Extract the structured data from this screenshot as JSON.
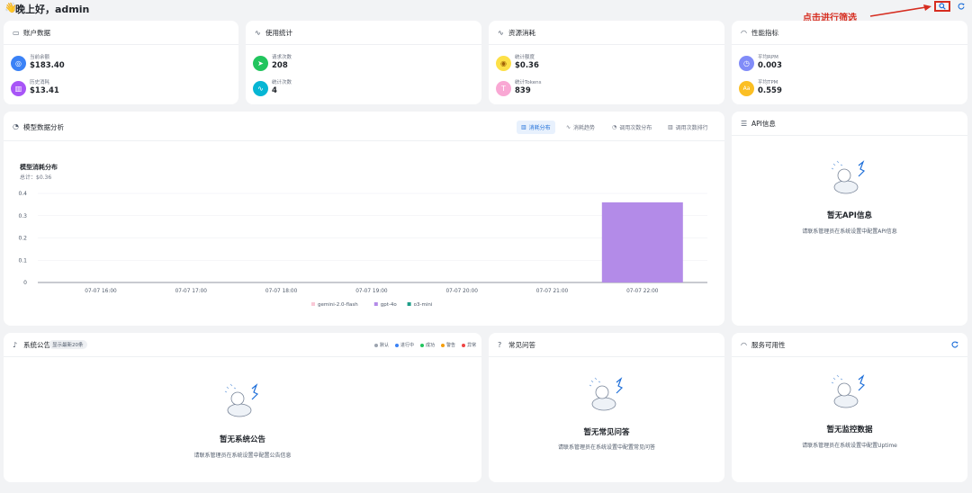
{
  "header": {
    "greeting": "晚上好，admin",
    "annotation": "点击进行筛选"
  },
  "cards": {
    "account": {
      "title": "账户数据",
      "items": [
        {
          "label": "当前余额",
          "value": "$183.40",
          "color": "#3b82f6",
          "icon": "wallet-icon"
        },
        {
          "label": "历史消耗",
          "value": "$13.41",
          "color": "#a855f7",
          "icon": "bar-chart-icon"
        }
      ]
    },
    "usage": {
      "title": "使用统计",
      "items": [
        {
          "label": "请求次数",
          "value": "208",
          "color": "#22c55e",
          "icon": "send-icon"
        },
        {
          "label": "统计次数",
          "value": "4",
          "color": "#06b6d4",
          "icon": "pulse-icon"
        }
      ]
    },
    "resource": {
      "title": "资源消耗",
      "items": [
        {
          "label": "统计额度",
          "value": "$0.36",
          "color": "#eab308",
          "icon": "coin-icon"
        },
        {
          "label": "统计Tokens",
          "value": "839",
          "color": "#ec4899",
          "icon": "text-icon"
        }
      ]
    },
    "performance": {
      "title": "性能指标",
      "items": [
        {
          "label": "平均RPM",
          "value": "0.003",
          "color": "#6366f1",
          "icon": "timer-icon"
        },
        {
          "label": "平均TPM",
          "value": "0.559",
          "color": "#f59e0b",
          "icon": "type-icon"
        }
      ]
    }
  },
  "analysis": {
    "title": "模型数据分析",
    "tabs": [
      "消耗分布",
      "消耗趋势",
      "调用次数分布",
      "调用次数排行"
    ],
    "active_tab": 0
  },
  "chart_data": {
    "type": "bar",
    "title": "模型消耗分布",
    "subtitle": "总计：$0.36",
    "categories": [
      "07-07 16:00",
      "07-07 17:00",
      "07-07 18:00",
      "07-07 19:00",
      "07-07 20:00",
      "07-07 21:00",
      "07-07 22:00"
    ],
    "yticks": [
      "0",
      "0.1",
      "0.2",
      "0.3",
      "0.4"
    ],
    "ylim": [
      0,
      0.4
    ],
    "series": [
      {
        "name": "gemini-2.0-flash",
        "color": "#f9c9d6",
        "values": [
          0,
          0,
          0,
          0,
          0,
          0,
          0
        ]
      },
      {
        "name": "gpt-4o",
        "color": "#b38be8",
        "values": [
          0,
          0,
          0,
          0,
          0,
          0,
          0.36
        ]
      },
      {
        "name": "o3-mini",
        "color": "#1f9e89",
        "values": [
          0,
          0,
          0,
          0,
          0,
          0,
          0
        ]
      }
    ],
    "grid": true,
    "legend_position": "bottom"
  },
  "api_info": {
    "title": "API信息",
    "empty_title": "暂无API信息",
    "empty_desc": "请联系管理员在系统设置中配置API信息"
  },
  "announcements": {
    "title": "系统公告",
    "badge": "显示最新20条",
    "legend": [
      {
        "label": "默认",
        "color": "#9ca3af"
      },
      {
        "label": "进行中",
        "color": "#3b82f6"
      },
      {
        "label": "成功",
        "color": "#22c55e"
      },
      {
        "label": "警告",
        "color": "#f59e0b"
      },
      {
        "label": "异常",
        "color": "#ef4444"
      }
    ],
    "empty_title": "暂无系统公告",
    "empty_desc": "请联系管理员在系统设置中配置公告信息"
  },
  "faq": {
    "title": "常见问答",
    "empty_title": "暂无常见问答",
    "empty_desc": "请联系管理员在系统设置中配置常见问答"
  },
  "uptime": {
    "title": "服务可用性",
    "empty_title": "暂无监控数据",
    "empty_desc": "请联系管理员在系统设置中配置Uptime"
  }
}
